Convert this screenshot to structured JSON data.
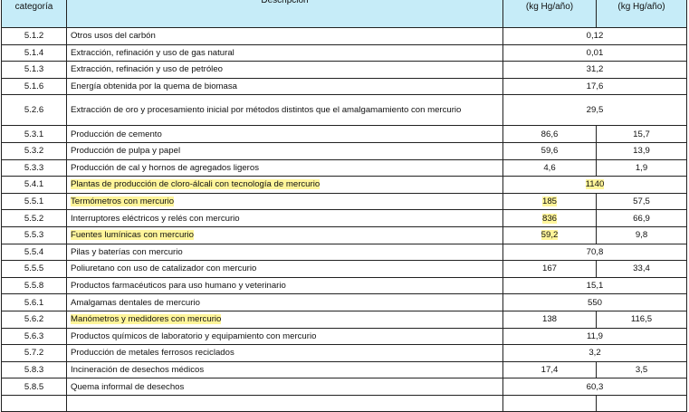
{
  "header": {
    "col_category": "categoría",
    "col_description": "Descripción",
    "col_value1": "(kg Hg/año)",
    "col_value2": "(kg Hg/año)"
  },
  "highlight_color": "#fff59a",
  "header_color": "#c6ecf8",
  "rows": [
    {
      "cat": "5.1.2",
      "desc": "Otros usos del carbón",
      "merged": "0,12"
    },
    {
      "cat": "5.1.4",
      "desc": "Extracción, refinación y uso de gas natural",
      "merged": "0,01"
    },
    {
      "cat": "5.1.3",
      "desc": "Extracción, refinación y uso de petróleo",
      "merged": "31,2"
    },
    {
      "cat": "5.1.6",
      "desc": "Energía obtenida por la quema de biomasa",
      "merged": "17,6"
    },
    {
      "cat": "5.2.6",
      "desc": "Extracción de oro y procesamiento inicial por métodos distintos que el amalgamamiento con mercurio",
      "merged": "29,5"
    },
    {
      "cat": "5.3.1",
      "desc": "Producción de cemento",
      "v1": "86,6",
      "v2": "15,7"
    },
    {
      "cat": "5.3.2",
      "desc": "Producción de pulpa y papel",
      "v1": "59,6",
      "v2": "13,9"
    },
    {
      "cat": "5.3.3",
      "desc": "Producción de cal y hornos de agregados ligeros",
      "v1": "4,6",
      "v2": "1,9"
    },
    {
      "cat": "5.4.1",
      "desc": "Plantas de producción de cloro-álcali con tecnología de mercurio",
      "merged": "1140"
    },
    {
      "cat": "5.5.1",
      "desc": "Termómetros con mercurio",
      "v1": "185",
      "v2": "57,5"
    },
    {
      "cat": "5.5.2",
      "desc": "Interruptores eléctricos y relés con mercurio",
      "v1": "836",
      "v2": "66,9"
    },
    {
      "cat": "5.5.3",
      "desc": "Fuentes lumínicas con mercurio",
      "v1": "59,2",
      "v2": "9,8"
    },
    {
      "cat": "5.5.4",
      "desc": "Pilas y baterías con mercurio",
      "merged": "70,8"
    },
    {
      "cat": "5.5.5",
      "desc": "Poliuretano con uso de catalizador con mercurio",
      "v1": "167",
      "v2": "33,4"
    },
    {
      "cat": "5.5.8",
      "desc": "Productos farmacéuticos para uso humano y veterinario",
      "merged": "15,1"
    },
    {
      "cat": "5.6.1",
      "desc": "Amalgamas dentales de mercurio",
      "merged": "550"
    },
    {
      "cat": "5.6.2",
      "desc": "Manómetros y medidores con mercurio",
      "v1": "138",
      "v2": "116,5"
    },
    {
      "cat": "5.6.3",
      "desc": "Productos químicos de laboratorio y equipamiento con mercurio",
      "merged": "11,9"
    },
    {
      "cat": "5.7.2",
      "desc": "Producción de metales ferrosos reciclados",
      "merged": "3,2"
    },
    {
      "cat": "5.8.3",
      "desc": "Incineración de desechos médicos",
      "v1": "17,4",
      "v2": "3,5"
    },
    {
      "cat": "5.8.5",
      "desc": "Quema informal de desechos",
      "merged": "60,3"
    }
  ]
}
